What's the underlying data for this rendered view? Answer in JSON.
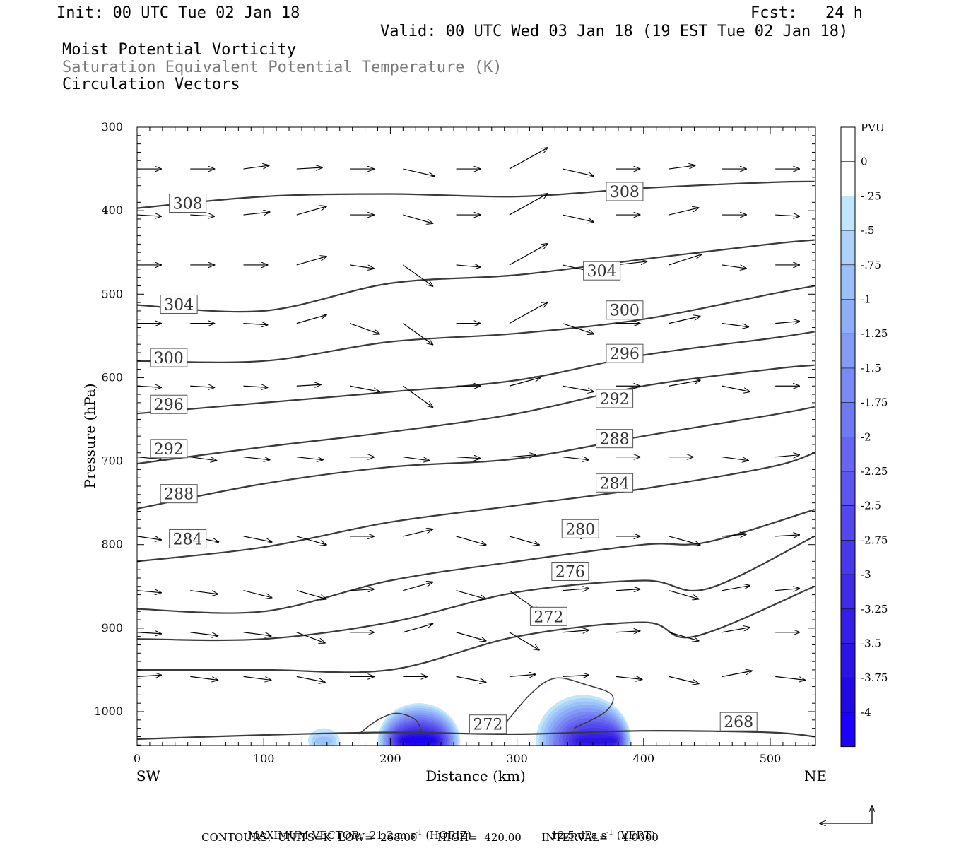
{
  "header": {
    "init": "Init: 00 UTC Tue 02 Jan 18",
    "fcst": "Fcst:   24 h",
    "valid": "Valid: 00 UTC Wed 03 Jan 18 (19 EST Tue 02 Jan 18)",
    "field1": "Moist Potential Vorticity",
    "field2": "Saturation Equivalent Potential Temperature (K)",
    "field3": "Circulation Vectors"
  },
  "footer": {
    "vec_a": "MAXIMUM VECTOR:  21.2 m s",
    "vec_b": "(HORIZ)",
    "vec_c": "12.5 dPa s",
    "vec_d": "(VERT)",
    "sup": "-1",
    "contours": "CONTOURS:  UNITS=K  LOW=  268.00      HIGH=  420.00      INTERVAL=    4.0000"
  },
  "chart_data": {
    "type": "cross-section",
    "xlabel": "Distance (km)",
    "ylabel": "Pressure (hPa)",
    "xlim": [
      0,
      535
    ],
    "ylim": [
      1040,
      300
    ],
    "x_ticks": [
      0,
      100,
      200,
      300,
      400,
      500
    ],
    "y_ticks": [
      300,
      400,
      500,
      600,
      700,
      800,
      900,
      1000
    ],
    "x_end_labels": {
      "left": "SW",
      "right": "NE"
    },
    "colorbar": {
      "unit": "PVU",
      "labels": [
        "0",
        "-.25",
        "-.5",
        "-.75",
        "-1",
        "-1.25",
        "-1.5",
        "-1.75",
        "-2",
        "-2.25",
        "-2.5",
        "-2.75",
        "-3",
        "-3.25",
        "-3.5",
        "-3.75",
        "-4"
      ],
      "colors": [
        "#ffffff",
        "#ffffff",
        "#bfe6fb",
        "#acd2fa",
        "#9cc0f9",
        "#8eaef8",
        "#849cf7",
        "#7a8af5",
        "#7078f3",
        "#6666f1",
        "#5c56ef",
        "#5248ed",
        "#483aeb",
        "#3e2ce9",
        "#341fe7",
        "#2a14e5",
        "#1f0ae3",
        "#1a00ff"
      ]
    },
    "contour_lines": [
      {
        "label": "308",
        "points": [
          [
            0,
            397
          ],
          [
            100,
            383
          ],
          [
            200,
            380
          ],
          [
            300,
            383
          ],
          [
            400,
            373
          ],
          [
            500,
            366
          ],
          [
            535,
            365
          ]
        ]
      },
      {
        "label": "304",
        "points": [
          [
            0,
            513
          ],
          [
            100,
            520
          ],
          [
            200,
            487
          ],
          [
            300,
            477
          ],
          [
            400,
            458
          ],
          [
            500,
            440
          ],
          [
            535,
            435
          ]
        ]
      },
      {
        "label": "300",
        "points": [
          [
            0,
            580
          ],
          [
            100,
            580
          ],
          [
            200,
            557
          ],
          [
            300,
            547
          ],
          [
            400,
            530
          ],
          [
            500,
            500
          ],
          [
            535,
            490
          ]
        ]
      },
      {
        "label": "296",
        "points": [
          [
            0,
            643
          ],
          [
            100,
            630
          ],
          [
            200,
            617
          ],
          [
            300,
            603
          ],
          [
            400,
            573
          ],
          [
            500,
            553
          ],
          [
            535,
            545
          ]
        ]
      },
      {
        "label": "292",
        "points": [
          [
            0,
            703
          ],
          [
            100,
            683
          ],
          [
            200,
            665
          ],
          [
            300,
            643
          ],
          [
            400,
            610
          ],
          [
            500,
            590
          ],
          [
            535,
            585
          ]
        ]
      },
      {
        "label": "288",
        "points": [
          [
            0,
            757
          ],
          [
            100,
            727
          ],
          [
            200,
            707
          ],
          [
            300,
            697
          ],
          [
            400,
            670
          ],
          [
            500,
            645
          ],
          [
            535,
            635
          ]
        ]
      },
      {
        "label": "284",
        "points": [
          [
            0,
            820
          ],
          [
            100,
            803
          ],
          [
            200,
            773
          ],
          [
            300,
            753
          ],
          [
            400,
            733
          ],
          [
            500,
            707
          ],
          [
            535,
            690
          ]
        ]
      },
      {
        "label": "280",
        "points": [
          [
            0,
            877
          ],
          [
            100,
            880
          ],
          [
            200,
            843
          ],
          [
            300,
            820
          ],
          [
            400,
            800
          ],
          [
            450,
            797
          ],
          [
            535,
            758
          ]
        ]
      },
      {
        "label": "276",
        "points": [
          [
            0,
            913
          ],
          [
            100,
            913
          ],
          [
            200,
            893
          ],
          [
            300,
            857
          ],
          [
            400,
            843
          ],
          [
            450,
            853
          ],
          [
            535,
            790
          ]
        ]
      },
      {
        "label": "272",
        "points": [
          [
            0,
            950
          ],
          [
            100,
            950
          ],
          [
            200,
            950
          ],
          [
            300,
            910
          ],
          [
            400,
            893
          ],
          [
            440,
            910
          ],
          [
            535,
            850
          ]
        ]
      },
      {
        "label": "268",
        "points": [
          [
            0,
            1033
          ],
          [
            100,
            1028
          ],
          [
            200,
            1025
          ],
          [
            300,
            1027
          ],
          [
            400,
            1023
          ],
          [
            500,
            1025
          ],
          [
            535,
            1030
          ]
        ]
      }
    ],
    "vectors_note": "circulation vectors, max 21.2 m/s horizontal, 12.5 dPa/s vertical",
    "pv_shading": [
      {
        "x_range": [
          190,
          255
        ],
        "p_top": 990,
        "min_pvu": -4
      },
      {
        "x_range": [
          315,
          390
        ],
        "p_top": 980,
        "min_pvu": -3.5
      },
      {
        "x_range": [
          135,
          160
        ],
        "p_top": 1020,
        "min_pvu": -0.75
      }
    ]
  }
}
